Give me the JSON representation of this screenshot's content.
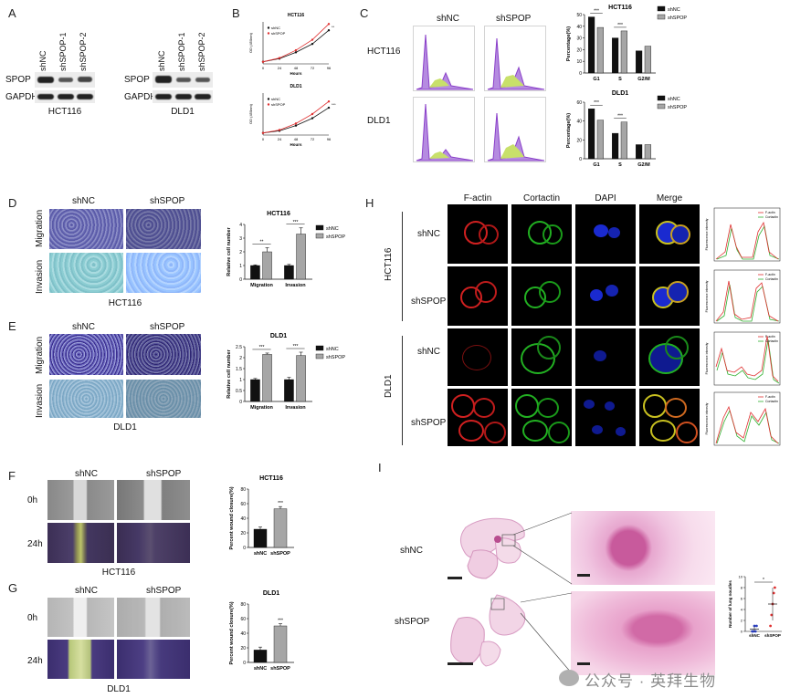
{
  "panels": {
    "A": "A",
    "B": "B",
    "C": "C",
    "D": "D",
    "E": "E",
    "F": "F",
    "G": "G",
    "H": "H",
    "I": "I"
  },
  "panel_a": {
    "hct116": {
      "lanes": [
        "shNC",
        "shSPOP-1",
        "shSPOP-2"
      ],
      "rows": [
        "SPOP",
        "GAPDH"
      ],
      "cell_line": "HCT116"
    },
    "dld1": {
      "lanes": [
        "shNC",
        "shSPOP-1",
        "shSPOP-2"
      ],
      "rows": [
        "SPOP",
        "GAPDH"
      ],
      "cell_line": "DLD1"
    }
  },
  "panel_c": {
    "columns": [
      "shNC",
      "shSPOP"
    ],
    "rows": [
      "HCT116",
      "DLD1"
    ]
  },
  "panel_d": {
    "columns": [
      "shNC",
      "shSPOP"
    ],
    "rows": [
      "Migration",
      "Invasion"
    ],
    "cell_line": "HCT116"
  },
  "panel_e": {
    "columns": [
      "shNC",
      "shSPOP"
    ],
    "rows": [
      "Migration",
      "Invasion"
    ],
    "cell_line": "DLD1"
  },
  "panel_f": {
    "columns": [
      "shNC",
      "shSPOP"
    ],
    "rows": [
      "0h",
      "24h"
    ],
    "cell_line": "HCT116"
  },
  "panel_g": {
    "columns": [
      "shNC",
      "shSPOP"
    ],
    "rows": [
      "0h",
      "24h"
    ],
    "cell_line": "DLD1"
  },
  "panel_h": {
    "columns": [
      "F-actin",
      "Cortactin",
      "DAPI",
      "Merge"
    ],
    "groups": [
      {
        "cell_line": "HCT116",
        "rows": [
          "shNC",
          "shSPOP"
        ]
      },
      {
        "cell_line": "DLD1",
        "rows": [
          "shNC",
          "shSPOP"
        ]
      }
    ],
    "profile": {
      "ylabel": "Fluorescence intensity",
      "legend": [
        "F-actin",
        "Cortactin"
      ]
    }
  },
  "panel_i": {
    "rows": [
      "shNC",
      "shSPOP"
    ]
  },
  "watermark": "公众号 · 英拜生物",
  "colors": {
    "red": "#e03030",
    "green": "#2fb02f",
    "black": "#111111",
    "grey": "#a6a6a6"
  },
  "chart_data": [
    {
      "id": "B1",
      "type": "line",
      "title": "HCT116",
      "xlabel": "Hours",
      "ylabel": "OD (450nm)",
      "x": [
        0,
        24,
        48,
        72,
        96
      ],
      "series": [
        {
          "name": "shNC",
          "values": [
            0.1,
            0.25,
            0.55,
            0.95,
            1.6
          ]
        },
        {
          "name": "shSPOP",
          "values": [
            0.1,
            0.28,
            0.65,
            1.15,
            1.9
          ]
        }
      ],
      "ylim": [
        0,
        2.0
      ],
      "ann": "**"
    },
    {
      "id": "B2",
      "type": "line",
      "title": "DLD1",
      "xlabel": "Hours",
      "ylabel": "OD (450nm)",
      "x": [
        0,
        24,
        48,
        72,
        96
      ],
      "series": [
        {
          "name": "shNC",
          "values": [
            0.1,
            0.2,
            0.45,
            0.8,
            1.3
          ]
        },
        {
          "name": "shSPOP",
          "values": [
            0.1,
            0.24,
            0.55,
            1.0,
            1.6
          ]
        }
      ],
      "ylim": [
        0,
        2.0
      ],
      "ann": "***"
    },
    {
      "id": "C1",
      "type": "bar",
      "title": "HCT116",
      "ylabel": "Percentage(%)",
      "categories": [
        "G1",
        "S",
        "G2/M"
      ],
      "series": [
        {
          "name": "shNC",
          "values": [
            48,
            30,
            19
          ]
        },
        {
          "name": "shSPOP",
          "values": [
            39,
            36,
            23
          ]
        }
      ],
      "ylim": [
        0,
        50
      ],
      "yticks": [
        0,
        10,
        20,
        30,
        40,
        50
      ],
      "ann": [
        "***",
        "***",
        ""
      ]
    },
    {
      "id": "C2",
      "type": "bar",
      "title": "DLD1",
      "ylabel": "Percentage(%)",
      "categories": [
        "G1",
        "S",
        "G2/M"
      ],
      "series": [
        {
          "name": "shNC",
          "values": [
            53,
            27,
            15
          ]
        },
        {
          "name": "shSPOP",
          "values": [
            41,
            39,
            15
          ]
        }
      ],
      "ylim": [
        0,
        60
      ],
      "yticks": [
        0,
        20,
        40,
        60
      ],
      "ann": [
        "***",
        "***",
        ""
      ]
    },
    {
      "id": "D",
      "type": "bar",
      "title": "HCT116",
      "ylabel": "Relative cell number",
      "categories": [
        "Migration",
        "Invasion"
      ],
      "series": [
        {
          "name": "shNC",
          "values": [
            1.0,
            1.0
          ]
        },
        {
          "name": "shSPOP",
          "values": [
            2.0,
            3.3
          ]
        }
      ],
      "errors": [
        [
          0.05,
          0.08
        ],
        [
          0.3,
          0.45
        ]
      ],
      "ylim": [
        0,
        4
      ],
      "yticks": [
        0,
        1,
        2,
        3,
        4
      ],
      "ann": [
        "**",
        "***"
      ]
    },
    {
      "id": "E",
      "type": "bar",
      "title": "DLD1",
      "ylabel": "Relative cell number",
      "categories": [
        "Migration",
        "Invasion"
      ],
      "series": [
        {
          "name": "shNC",
          "values": [
            1.0,
            1.0
          ]
        },
        {
          "name": "shSPOP",
          "values": [
            2.15,
            2.1
          ]
        }
      ],
      "errors": [
        [
          0.05,
          0.1
        ],
        [
          0.06,
          0.15
        ]
      ],
      "ylim": [
        0,
        2.5
      ],
      "yticks": [
        0.0,
        0.5,
        1.0,
        1.5,
        2.0,
        2.5
      ],
      "ann": [
        "***",
        "***"
      ]
    },
    {
      "id": "F",
      "type": "bar",
      "title": "HCT116",
      "ylabel": "Percent wound closure(%)",
      "categories": [
        "shNC",
        "shSPOP"
      ],
      "values": [
        25,
        53
      ],
      "errors": [
        3,
        3
      ],
      "ylim": [
        0,
        80
      ],
      "yticks": [
        0,
        20,
        40,
        60,
        80
      ],
      "ann": "***",
      "colors": [
        "#111111",
        "#a6a6a6"
      ]
    },
    {
      "id": "G",
      "type": "bar",
      "title": "DLD1",
      "ylabel": "Percent wound closure(%)",
      "categories": [
        "shNC",
        "shSPOP"
      ],
      "values": [
        17,
        50
      ],
      "errors": [
        4,
        3
      ],
      "ylim": [
        0,
        80
      ],
      "yticks": [
        0,
        20,
        40,
        60,
        80
      ],
      "ann": "***",
      "colors": [
        "#111111",
        "#a6a6a6"
      ]
    },
    {
      "id": "I",
      "type": "scatter",
      "ylabel": "Number of lung noudles",
      "categories": [
        "shNC",
        "shSPOP"
      ],
      "points": [
        [
          0,
          0,
          1,
          0,
          1
        ],
        [
          1,
          3,
          5,
          7,
          8
        ]
      ],
      "means": [
        0.4,
        5
      ],
      "errors": [
        0.5,
        3
      ],
      "ylim": [
        0,
        10
      ],
      "yticks": [
        0,
        2,
        4,
        6,
        8,
        10
      ],
      "ann": "*"
    }
  ]
}
